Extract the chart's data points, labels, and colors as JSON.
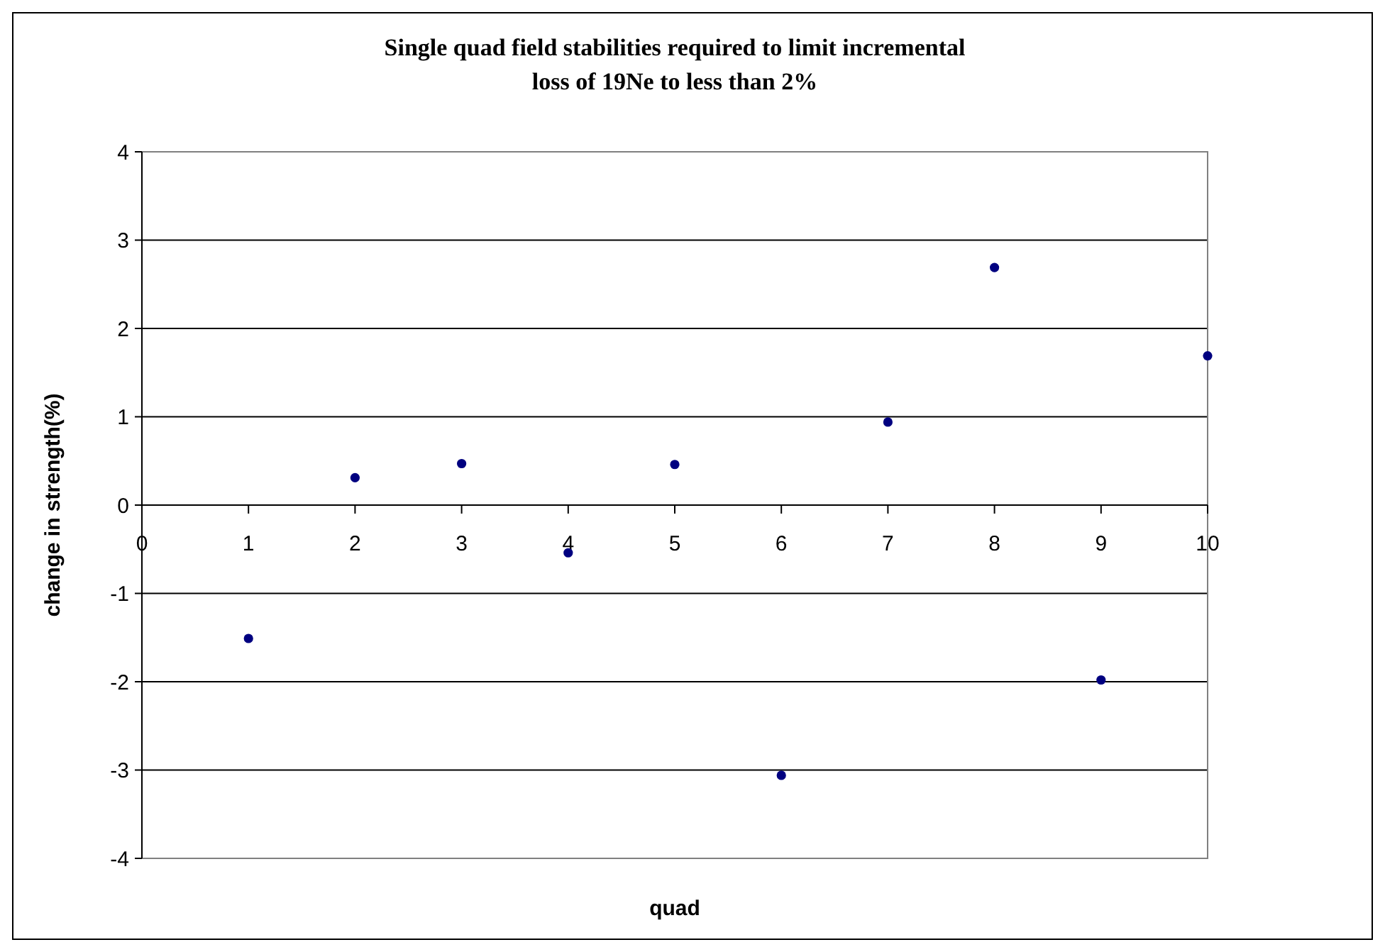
{
  "chart_data": {
    "type": "scatter",
    "title": "Single quad field stabilities required to limit incremental loss of 19Ne to less than 2%",
    "xlabel": "quad",
    "ylabel": "change in strength(%)",
    "x": [
      1,
      2,
      3,
      4,
      5,
      6,
      7,
      8,
      9,
      10
    ],
    "series": [
      {
        "color": "#000080",
        "values": [
          -1.51,
          0.31,
          0.47,
          -0.54,
          0.46,
          -3.06,
          0.94,
          2.69,
          -1.98,
          1.69
        ]
      }
    ],
    "xlim": [
      0,
      10
    ],
    "xticks": [
      0,
      1,
      2,
      3,
      4,
      5,
      6,
      7,
      8,
      9,
      10
    ],
    "ylim": [
      -4,
      4
    ],
    "yticks": [
      -4,
      -3,
      -2,
      -1,
      0,
      1,
      2,
      3,
      4
    ],
    "grid": "y",
    "marker": "circle"
  }
}
